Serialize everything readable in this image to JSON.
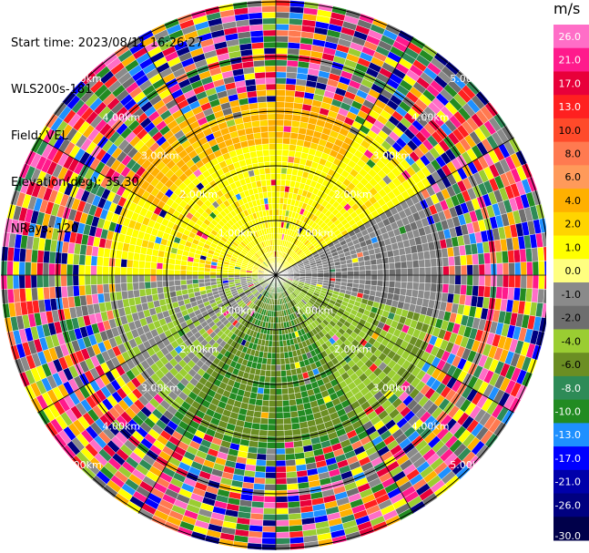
{
  "header": {
    "start_time": "Start time: 2023/08/11 16:26:27",
    "instrument": "WLS200s-181",
    "field": "Field: VEL",
    "elevation": "Elevation(deg): 35.30",
    "nrays": "NRays: 120"
  },
  "ring_labels": [
    "1.00km",
    "2.00km",
    "3.00km",
    "4.00km",
    "5.00km"
  ],
  "colorbar": {
    "unit": "m/s",
    "ticks": [
      "26.0",
      "21.0",
      "17.0",
      "13.0",
      "10.0",
      "8.0",
      "6.0",
      "4.0",
      "2.0",
      "1.0",
      "0.0",
      "-1.0",
      "-2.0",
      "-4.0",
      "-6.0",
      "-8.0",
      "-10.0",
      "-13.0",
      "-17.0",
      "-21.0",
      "-26.0",
      "-30.0"
    ],
    "colors": [
      "#ff6ec7",
      "#ff1a8c",
      "#e8003a",
      "#ff2020",
      "#ff4a2a",
      "#ff7a50",
      "#ff9a5a",
      "#ffb000",
      "#ffd400",
      "#ffff00",
      "#ffff80",
      "#8a8a8a",
      "#6e6e6e",
      "#9acd32",
      "#6b8e23",
      "#2e8b57",
      "#228b22",
      "#1e90ff",
      "#0000ff",
      "#0000aa",
      "#000080",
      "#00004a"
    ]
  }
}
